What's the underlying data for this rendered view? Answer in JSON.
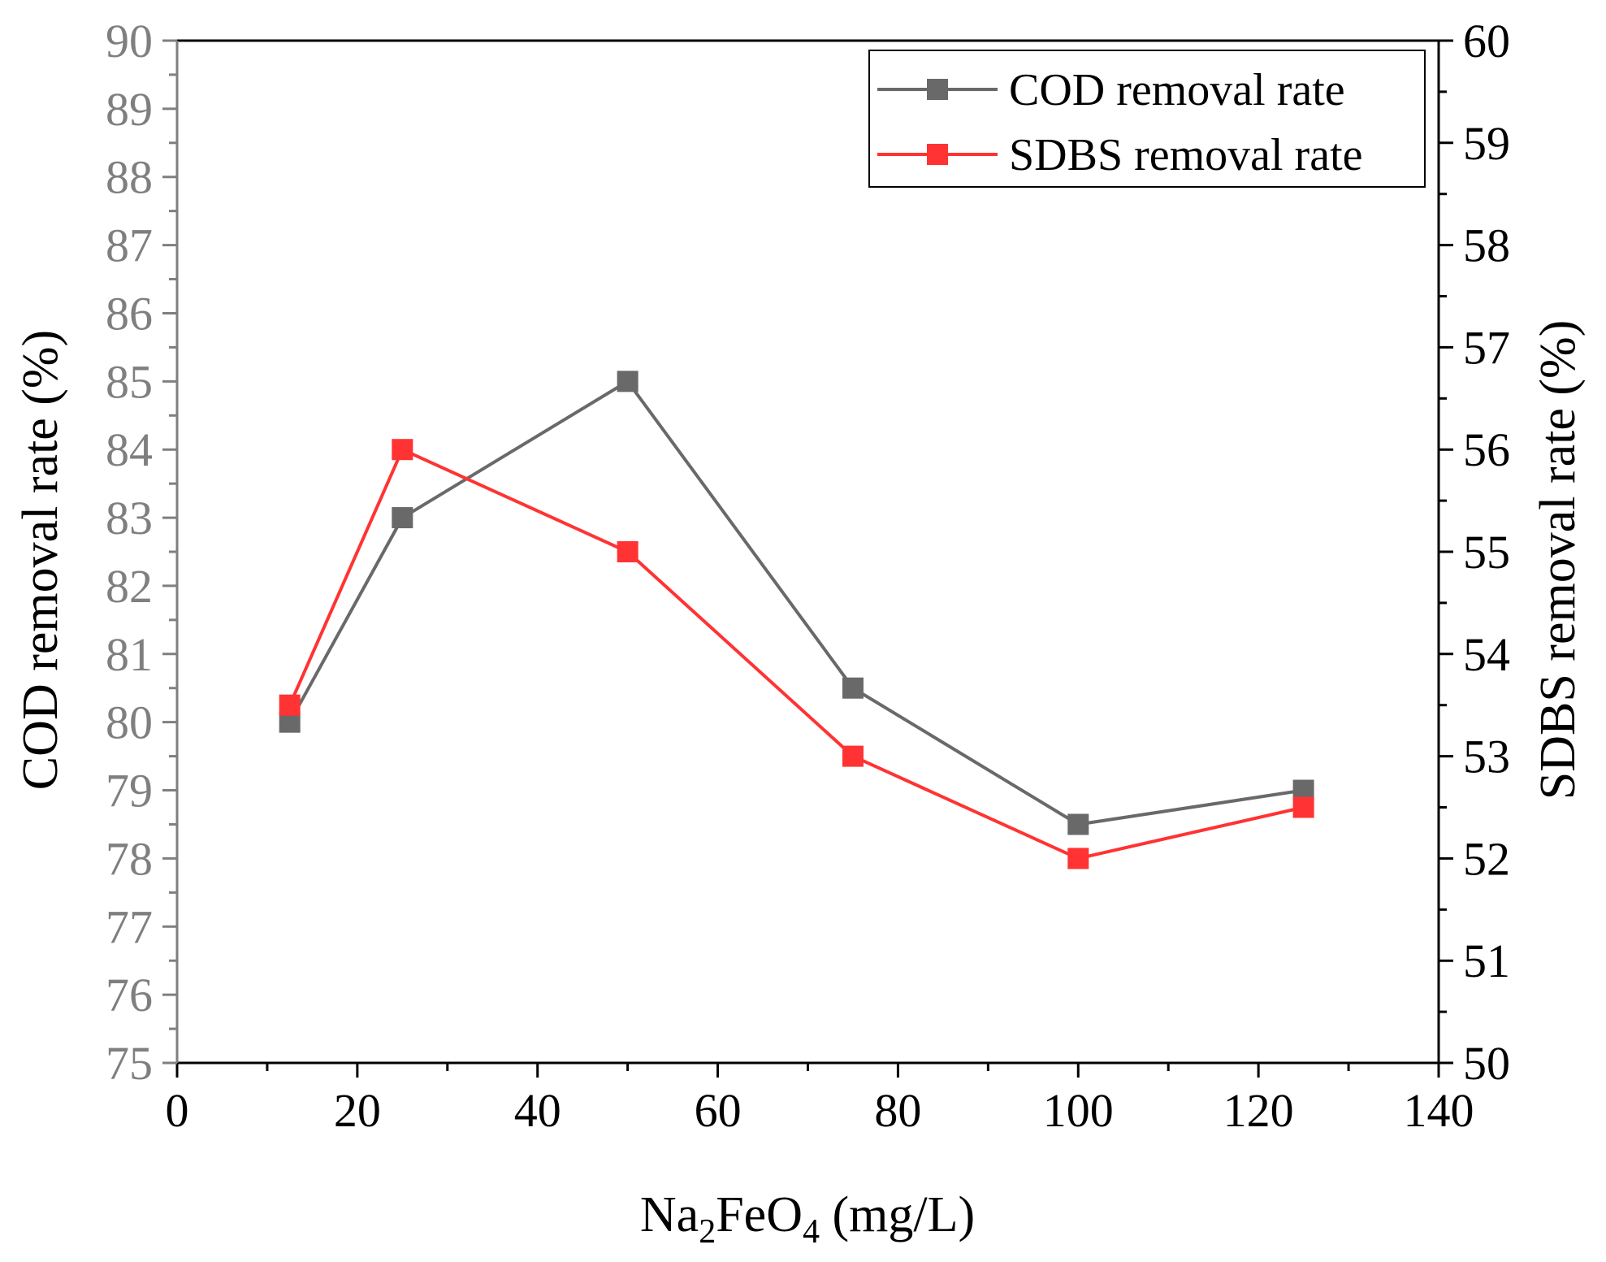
{
  "chart_data": {
    "type": "line",
    "x": [
      12.5,
      25,
      50,
      75,
      100,
      125
    ],
    "xlabel_main": "Na",
    "xlabel_sub1": "2",
    "xlabel_mid": "FeO",
    "xlabel_sub2": "4",
    "xlabel_tail": " (mg/L)",
    "xlim": [
      0,
      140
    ],
    "xticks": [
      "0",
      "20",
      "40",
      "60",
      "80",
      "100",
      "120",
      "140"
    ],
    "ylabel_left": "COD removal rate (%)",
    "ylim_left": [
      75,
      90
    ],
    "yticks_left": [
      "75",
      "76",
      "77",
      "78",
      "79",
      "80",
      "81",
      "82",
      "83",
      "84",
      "85",
      "86",
      "87",
      "88",
      "89",
      "90"
    ],
    "ylabel_right": "SDBS removal rate (%)",
    "ylim_right": [
      50,
      60
    ],
    "yticks_right": [
      "50",
      "51",
      "52",
      "53",
      "54",
      "55",
      "56",
      "57",
      "58",
      "59",
      "60"
    ],
    "series": [
      {
        "name": "COD removal rate",
        "axis": "left",
        "color": "#696969",
        "marker": "square",
        "values": [
          80.0,
          83.0,
          85.0,
          80.5,
          78.5,
          79.0
        ]
      },
      {
        "name": "SDBS removal rate",
        "axis": "right",
        "color": "#FF3333",
        "marker": "square",
        "values": [
          53.5,
          56.0,
          55.0,
          53.0,
          52.0,
          52.5
        ]
      }
    ],
    "legend_position": "top-right",
    "grid": false
  },
  "colors": {
    "left_axis": "#7f7f7f",
    "right_axis": "#000000",
    "frame": "#000000"
  }
}
